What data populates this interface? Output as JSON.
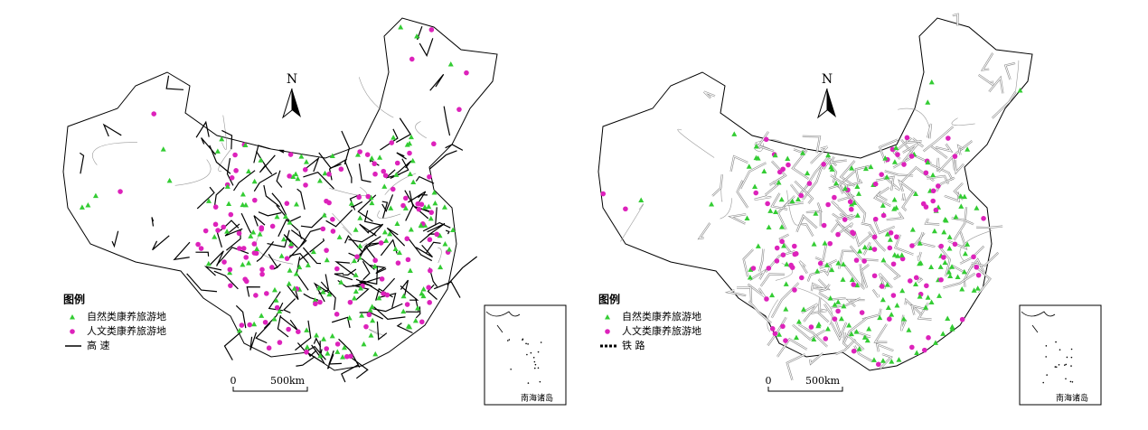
{
  "maps": [
    {
      "north": "N",
      "legend": {
        "title": "图例",
        "items": [
          "自然类康养旅游地",
          "人文类康养旅游地",
          "高 速"
        ]
      },
      "scale": {
        "zero": "0",
        "distance": "500km"
      },
      "inset_label": "南海诸岛"
    },
    {
      "north": "N",
      "legend": {
        "title": "图例",
        "items": [
          "自然类康养旅游地",
          "人文类康养旅游地",
          "铁 路"
        ]
      },
      "scale": {
        "zero": "0",
        "distance": "500km"
      },
      "inset_label": "南海诸岛"
    }
  ]
}
